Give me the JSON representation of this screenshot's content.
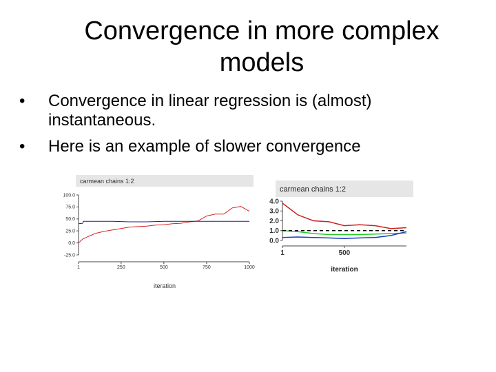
{
  "title": {
    "line1": "Convergence in more complex",
    "line2": "models"
  },
  "bullets": [
    {
      "marker": "•",
      "text": "Convergence in linear regression is (almost) instantaneous."
    },
    {
      "marker": "•",
      "text": "Here is an example of slower convergence"
    }
  ],
  "chart_data": [
    {
      "type": "line",
      "title": "carmean chains 1:2",
      "xlabel": "iteration",
      "ylabel": "",
      "xlim": [
        1,
        1000
      ],
      "ylim": [
        -25,
        100
      ],
      "x_ticks": [
        "1",
        "250",
        "500",
        "750",
        "1000"
      ],
      "y_ticks": [
        "100.0",
        "75.0",
        "50.0",
        "25.0",
        "0.0",
        "-25.0"
      ],
      "series": [
        {
          "color": "#d62020",
          "x": [
            1,
            25,
            50,
            75,
            100,
            150,
            200,
            250,
            300,
            350,
            400,
            450,
            500,
            550,
            600,
            650,
            700,
            750,
            800,
            850,
            900,
            950,
            1000
          ],
          "y": [
            0,
            8,
            12,
            16,
            20,
            24,
            27,
            30,
            33,
            34,
            35,
            37,
            38,
            40,
            41,
            44,
            46,
            56,
            60,
            60,
            73,
            76,
            66
          ]
        },
        {
          "color": "#1a1a9c",
          "x": [
            1,
            25,
            30,
            50,
            100,
            200,
            300,
            400,
            500,
            600,
            700,
            800,
            900,
            1000
          ],
          "y": [
            40,
            41,
            45,
            45,
            45,
            45,
            44,
            44,
            45,
            45,
            45,
            45,
            45,
            45
          ]
        }
      ]
    },
    {
      "type": "line",
      "title": "carmean chains 1:2",
      "xlabel": "iteration",
      "ylabel": "",
      "xlim": [
        1,
        1000
      ],
      "ylim": [
        0,
        4
      ],
      "x_ticks": [
        "1",
        "500"
      ],
      "y_ticks": [
        "4.0",
        "3.0",
        "2.0",
        "1.0",
        "0.0"
      ],
      "series": [
        {
          "color": "#cc2020",
          "x": [
            1,
            125,
            250,
            375,
            500,
            625,
            750,
            875,
            1000
          ],
          "y": [
            3.8,
            2.6,
            2.0,
            1.9,
            1.5,
            1.6,
            1.5,
            1.2,
            1.3
          ],
          "dash": false
        },
        {
          "color": "#22cc22",
          "x": [
            1,
            125,
            250,
            375,
            500,
            625,
            750,
            875,
            1000
          ],
          "y": [
            1.0,
            0.9,
            0.7,
            0.6,
            0.6,
            0.6,
            0.65,
            0.7,
            0.75
          ],
          "dash": false
        },
        {
          "color": "#1a3cc0",
          "x": [
            1,
            125,
            250,
            375,
            500,
            625,
            750,
            875,
            1000
          ],
          "y": [
            0.3,
            0.35,
            0.3,
            0.25,
            0.2,
            0.25,
            0.3,
            0.5,
            0.9
          ],
          "dash": false
        },
        {
          "color": "#000000",
          "x": [
            1,
            1000
          ],
          "y": [
            1.0,
            1.0
          ],
          "dash": true
        }
      ]
    }
  ]
}
